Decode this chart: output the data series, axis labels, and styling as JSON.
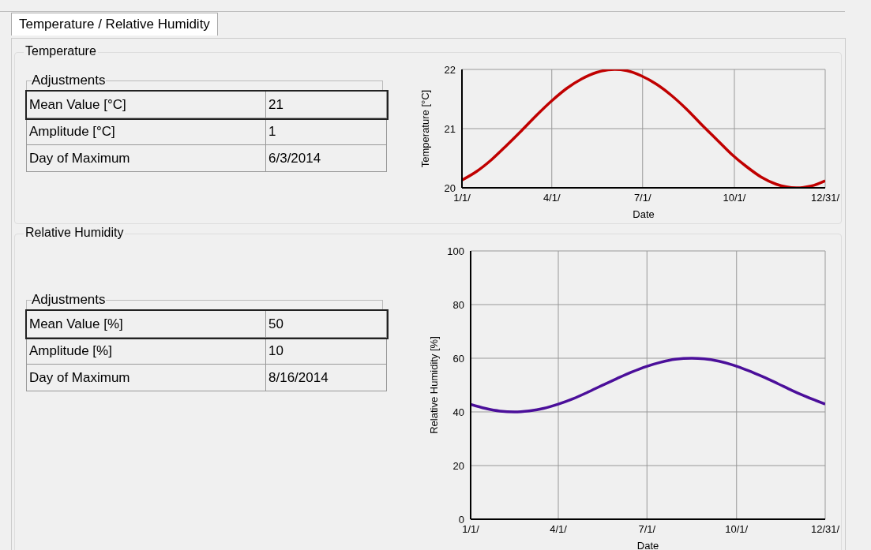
{
  "chart_data": [
    {
      "type": "other",
      "title": "Temperature / Relative Humidity",
      "subtitle": "Temperature",
      "annotations": [
        "Adjustments",
        "Mean Value [°C]",
        "21",
        "Amplitude [°C]",
        "1",
        "Day of Maximum",
        "6/3/2014"
      ]
    },
    {
      "type": "line",
      "xlabel": "Date",
      "ylabel": "Temperature [°C]",
      "x": [
        "--01-01",
        "--01-16",
        "--01-31",
        "--02-15",
        "--03-02",
        "--03-17",
        "--04-01",
        "--04-16",
        "--05-01",
        "--05-16",
        "--06-03",
        "--06-15",
        "--06-30",
        "--07-15",
        "--07-30",
        "--08-14",
        "--08-29",
        "--09-13",
        "--09-28",
        "--10-13",
        "--10-28",
        "--11-12",
        "--12-02",
        "--12-17",
        "--12-31"
      ],
      "series": [
        {
          "color": "#c00000",
          "values": [
            20.13,
            20.28,
            20.48,
            20.72,
            20.97,
            21.23,
            21.47,
            21.68,
            21.84,
            21.95,
            22,
            21.98,
            21.89,
            21.75,
            21.56,
            21.33,
            21.07,
            20.82,
            20.57,
            20.36,
            20.18,
            20.06,
            20,
            20.03,
            20.12
          ]
        }
      ],
      "xlim": [
        "--01-01",
        "--12-31"
      ],
      "xticks": [
        {
          "value": "--01-01",
          "label": "1/1/"
        },
        {
          "value": "--04-01",
          "label": "4/1/"
        },
        {
          "value": "--07-01",
          "label": "7/1/"
        },
        {
          "value": "--10-01",
          "label": "10/1/"
        },
        {
          "value": "--12-31",
          "label": "12/31/"
        }
      ],
      "ylim": [
        20,
        22
      ],
      "yticks": [
        20,
        21,
        22
      ],
      "grid": true
    },
    {
      "type": "other",
      "subtitle": "Relative Humidity",
      "annotations": [
        "Adjustments",
        "Mean Value [%]",
        "50",
        "Amplitude [%]",
        "10",
        "Day of Maximum",
        "8/16/2014"
      ]
    },
    {
      "type": "line",
      "xlabel": "Date",
      "ylabel": "Relative Humidity [%]",
      "x": [
        "--01-01",
        "--01-16",
        "--01-31",
        "--02-15",
        "--03-02",
        "--03-17",
        "--04-01",
        "--04-16",
        "--05-01",
        "--05-16",
        "--05-31",
        "--06-15",
        "--06-30",
        "--07-15",
        "--07-30",
        "--08-16",
        "--08-29",
        "--09-13",
        "--09-28",
        "--10-13",
        "--10-28",
        "--11-12",
        "--11-27",
        "--12-12",
        "--12-31"
      ],
      "series": [
        {
          "color": "#4b0f9a",
          "values": [
            42.8,
            41.3,
            40.3,
            40.0,
            40.4,
            41.3,
            42.9,
            44.9,
            47.3,
            49.9,
            52.4,
            54.8,
            56.9,
            58.5,
            59.6,
            60,
            59.8,
            58.9,
            57.4,
            55.4,
            53.1,
            50.6,
            48.0,
            45.6,
            42.9
          ]
        }
      ],
      "xlim": [
        "--01-01",
        "--12-31"
      ],
      "xticks": [
        {
          "value": "--01-01",
          "label": "1/1/"
        },
        {
          "value": "--04-01",
          "label": "4/1/"
        },
        {
          "value": "--07-01",
          "label": "7/1/"
        },
        {
          "value": "--10-01",
          "label": "10/1/"
        },
        {
          "value": "--12-31",
          "label": "12/31/"
        }
      ],
      "ylim": [
        0,
        100
      ],
      "yticks": [
        0,
        20,
        40,
        60,
        80,
        100
      ],
      "grid": true
    }
  ]
}
